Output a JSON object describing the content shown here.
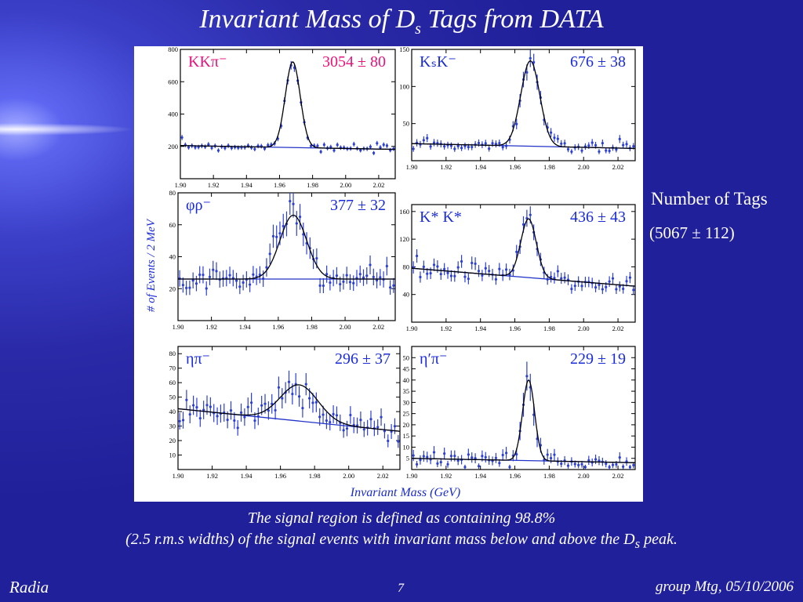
{
  "slide": {
    "title_prefix": "Invariant Mass of D",
    "title_sub": "s",
    "title_suffix": " Tags  from DATA",
    "tags_label": "Number of Tags",
    "tags_value": "(5067 ± 112)",
    "caption_line1": "The signal region is defined as containing 98.8%",
    "caption_line2_a": "(2.5 r.m.s widths) of the signal events with invariant mass below and above the  D",
    "caption_line2_sub": "s",
    "caption_line2_b": "  peak.",
    "footer_left": "Radia",
    "footer_page": "7",
    "footer_right": "group Mtg, 05/10/2006",
    "colors": {
      "background": "#2a2aa8",
      "data_points": "#2b3fd8",
      "fit_curve": "#000000",
      "label_magenta": "#e8127a"
    }
  },
  "figure": {
    "y_axis_title": "# of Events / 2 MeV",
    "x_axis_title": "Invariant Mass (GeV)"
  },
  "chart_data": [
    {
      "type": "scatter",
      "mode": "kkpi",
      "decay": "KKπ⁻",
      "yield": "3054 ± 80",
      "label_color": "#e8127a",
      "xlim": [
        1.9,
        2.03
      ],
      "ylim": [
        0,
        800
      ],
      "yticks": [
        200,
        400,
        600,
        800
      ],
      "xticks": [
        "1.90",
        "1.92",
        "1.94",
        "1.96",
        "1.98",
        "2.00",
        "2.02"
      ],
      "fit": {
        "mean": 1.968,
        "sigma": 0.0045,
        "peak": 530,
        "bg0": 205,
        "bg_slope": -180
      }
    },
    {
      "type": "scatter",
      "mode": "kskk",
      "decay": "KₛK⁻",
      "yield": "676 ± 38",
      "label_color": "#1a2bd8",
      "xlim": [
        1.9,
        2.03
      ],
      "ylim": [
        0,
        150
      ],
      "yticks": [
        50,
        100,
        150
      ],
      "xticks": [
        "1.90",
        "1.92",
        "1.94",
        "1.96",
        "1.98",
        "2.00",
        "2.02"
      ],
      "fit": {
        "mean": 1.969,
        "sigma": 0.0055,
        "peak": 115,
        "bg0": 23,
        "bg_slope": -50
      }
    },
    {
      "type": "scatter",
      "mode": "phirho",
      "decay": "φρ⁻",
      "yield": "377 ± 32",
      "label_color": "#1a2bd8",
      "xlim": [
        1.9,
        2.03
      ],
      "ylim": [
        0,
        80
      ],
      "yticks": [
        20,
        40,
        60,
        80
      ],
      "xticks": [
        "1.90",
        "1.92",
        "1.94",
        "1.96",
        "1.98",
        "2.00",
        "2.02"
      ],
      "fit": {
        "mean": 1.969,
        "sigma": 0.008,
        "peak": 40,
        "bg0": 26,
        "bg_slope": 0
      }
    },
    {
      "type": "scatter",
      "mode": "kstark",
      "decay": "K* K*",
      "yield": "436 ± 43",
      "label_color": "#1a2bd8",
      "xlim": [
        1.9,
        2.03
      ],
      "ylim": [
        0,
        170
      ],
      "yticks": [
        40,
        80,
        120,
        160
      ],
      "xticks": [
        "1.90",
        "1.92",
        "1.94",
        "1.96",
        "1.98",
        "2.00",
        "2.02"
      ],
      "fit": {
        "mean": 1.968,
        "sigma": 0.0045,
        "peak": 85,
        "bg0": 78,
        "bg_slope": -200
      }
    },
    {
      "type": "scatter",
      "mode": "etapi",
      "decay": "ηπ⁻",
      "yield": "296 ± 37",
      "label_color": "#1a2bd8",
      "xlim": [
        1.9,
        2.03
      ],
      "ylim": [
        0,
        85
      ],
      "yticks": [
        10,
        20,
        30,
        40,
        50,
        60,
        70,
        80
      ],
      "xticks": [
        "1.90",
        "1.92",
        "1.94",
        "1.96",
        "1.98",
        "2.00",
        "2.02"
      ],
      "fit": {
        "mean": 1.971,
        "sigma": 0.011,
        "peak": 25,
        "bg0": 42,
        "bg_slope": -120
      }
    },
    {
      "type": "scatter",
      "mode": "etaprimepi",
      "decay": "η′π⁻",
      "yield": "229 ± 19",
      "label_color": "#1a2bd8",
      "xlim": [
        1.9,
        2.03
      ],
      "ylim": [
        0,
        55
      ],
      "yticks": [
        5,
        10,
        15,
        20,
        25,
        30,
        35,
        40,
        45,
        50
      ],
      "xticks": [
        "1.90",
        "1.92",
        "1.94",
        "1.96",
        "1.98",
        "2.00",
        "2.02"
      ],
      "fit": {
        "mean": 1.968,
        "sigma": 0.0035,
        "peak": 36,
        "bg0": 5,
        "bg_slope": -15
      }
    }
  ]
}
